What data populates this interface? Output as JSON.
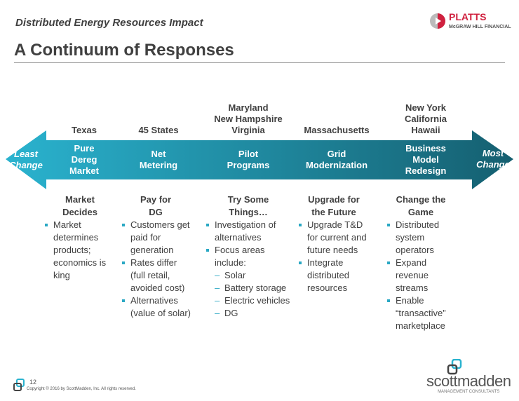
{
  "header": {
    "subtitle": "Distributed Energy Resources Impact",
    "title": "A Continuum of Responses"
  },
  "brand": {
    "platts": "PLATTS",
    "platts_sub": "McGRAW HILL FINANCIAL",
    "scottmadden": "scottmadden",
    "scottmadden_sub": "MANAGEMENT CONSULTANTS"
  },
  "colors": {
    "arrow_left": "#2ab3cf",
    "arrow_right": "#155f70",
    "bullet": "#2aa8c4",
    "platts_red": "#d0213f"
  },
  "arrow": {
    "left_end": [
      "Least",
      "Change"
    ],
    "right_end": [
      "Most",
      "Change"
    ]
  },
  "columns": [
    {
      "states": [
        "Texas"
      ],
      "label": [
        "Pure",
        "Dereg",
        "Market"
      ],
      "heading": [
        "Market",
        "Decides"
      ],
      "bullets": [
        {
          "t": "b",
          "text": "Market determines products; economics is king"
        }
      ]
    },
    {
      "states": [
        "45 States"
      ],
      "label": [
        "Net",
        "Metering"
      ],
      "heading": [
        "Pay for",
        "DG"
      ],
      "bullets": [
        {
          "t": "b",
          "text": "Customers get paid for generation"
        },
        {
          "t": "b",
          "text": "Rates differ (full retail, avoided cost)"
        },
        {
          "t": "b",
          "text": "Alternatives (value of solar)"
        }
      ]
    },
    {
      "states": [
        "Maryland",
        "New Hampshire",
        "Virginia"
      ],
      "label": [
        "Pilot",
        "Programs"
      ],
      "heading": [
        "Try Some",
        "Things…"
      ],
      "bullets": [
        {
          "t": "b",
          "text": "Investigation of alternatives"
        },
        {
          "t": "b",
          "text": "Focus areas include:"
        },
        {
          "t": "d",
          "text": "Solar"
        },
        {
          "t": "d",
          "text": "Battery storage"
        },
        {
          "t": "d",
          "text": "Electric vehicles"
        },
        {
          "t": "d",
          "text": "DG"
        }
      ]
    },
    {
      "states": [
        "Massachusetts"
      ],
      "label": [
        "Grid",
        "Modernization"
      ],
      "heading": [
        "Upgrade for",
        "the Future"
      ],
      "bullets": [
        {
          "t": "b",
          "text": "Upgrade T&D for current and future needs"
        },
        {
          "t": "b",
          "text": "Integrate distributed resources"
        }
      ]
    },
    {
      "states": [
        "New York",
        "California",
        "Hawaii"
      ],
      "label": [
        "Business",
        "Model",
        "Redesign"
      ],
      "heading": [
        "Change the",
        "Game"
      ],
      "bullets": [
        {
          "t": "b",
          "text": "Distributed system operators"
        },
        {
          "t": "b",
          "text": "Expand revenue streams"
        },
        {
          "t": "b",
          "text": "Enable “transactive” marketplace"
        }
      ]
    }
  ],
  "footer": {
    "page": "12",
    "copyright": "Copyright © 2016 by ScottMadden, Inc. All rights reserved."
  }
}
